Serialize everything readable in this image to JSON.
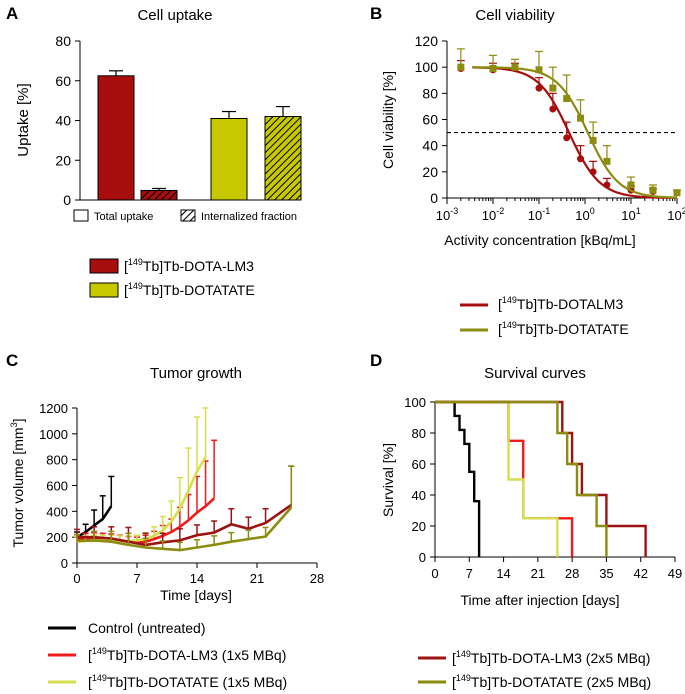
{
  "colors": {
    "lm3": "#a80d0d",
    "lm3_dark": "#5c0000",
    "dotatate": "#c8c800",
    "dotatate_dark": "#6f6f00",
    "control": "#000000",
    "lm3_bright": "#f01c1c",
    "dotatate_bright": "#d6de4e",
    "lm3_2x": "#9b1313",
    "dotatate_2x": "#8c8c10"
  },
  "chart_data": [
    {
      "panel": "A",
      "type": "bar",
      "title": "Cell uptake",
      "ylabel": "Uptake [%]",
      "ylim": [
        0,
        80
      ],
      "yticks": [
        "0",
        "20",
        "40",
        "60",
        "80"
      ],
      "bars": [
        {
          "name": "lm3-total",
          "compound": "lm3",
          "fraction": "total",
          "value": 62.5,
          "err": 2.5
        },
        {
          "name": "lm3-internalized",
          "compound": "lm3",
          "fraction": "internalized",
          "value": 4.8,
          "err": 1.0
        },
        {
          "name": "dotatate-total",
          "compound": "dotatate",
          "fraction": "total",
          "value": 41.0,
          "err": 3.5
        },
        {
          "name": "dotatate-internalized",
          "compound": "dotatate",
          "fraction": "internalized",
          "value": 42.0,
          "err": 5.0
        }
      ],
      "legend_fraction": {
        "total": "Total uptake",
        "internalized": "Internalized fraction"
      },
      "legend_compound": [
        {
          "key": "lm3",
          "sup": "149",
          "label": "Tb]Tb-DOTA-LM3"
        },
        {
          "key": "dotatate",
          "sup": "149",
          "label": "Tb]Tb-DOTATATE"
        }
      ]
    },
    {
      "panel": "B",
      "type": "line",
      "title": "Cell viability",
      "ylabel": "Cell viability [%]",
      "xlabel": "Activity concentration [kBq/mL]",
      "xscale": "log",
      "xlim_exp": [
        -3,
        2
      ],
      "ylim": [
        0,
        120
      ],
      "yticks": [
        "0",
        "20",
        "40",
        "60",
        "80",
        "100",
        "120"
      ],
      "xticks": [
        {
          "base": "10",
          "exp": "-3"
        },
        {
          "base": "10",
          "exp": "-2"
        },
        {
          "base": "10",
          "exp": "-1"
        },
        {
          "base": "10",
          "exp": "0"
        },
        {
          "base": "10",
          "exp": "1"
        },
        {
          "base": "10",
          "exp": "2"
        }
      ],
      "reference_line": 50,
      "series": [
        {
          "name": "lm3",
          "label": "Tb]Tb-DOTALM3",
          "sup": "149",
          "ic50": 0.45,
          "hill": 1.3,
          "x": [
            0.002,
            0.01,
            0.03,
            0.1,
            0.2,
            0.4,
            0.8,
            1.5,
            3,
            10,
            30,
            100
          ],
          "y": [
            99,
            98,
            99,
            84,
            68,
            46,
            30,
            20,
            10,
            6,
            5,
            4
          ],
          "err": [
            6,
            5,
            4,
            8,
            12,
            12,
            10,
            8,
            5,
            3,
            2,
            2
          ]
        },
        {
          "name": "dotatate",
          "label": "Tb]Tb-DOTATATE",
          "sup": "149",
          "ic50": 1.15,
          "hill": 1.3,
          "x": [
            0.002,
            0.01,
            0.03,
            0.1,
            0.2,
            0.4,
            0.8,
            1.5,
            3,
            10,
            30,
            100
          ],
          "y": [
            100,
            99,
            100,
            98,
            84,
            76,
            61,
            44,
            28,
            10,
            6,
            4
          ],
          "err": [
            14,
            10,
            6,
            14,
            16,
            18,
            14,
            14,
            12,
            6,
            4,
            2
          ]
        }
      ]
    },
    {
      "panel": "C",
      "type": "line",
      "title": "Tumor growth",
      "ylabel_main": "Tumor volume [mm",
      "ylabel_sup": "3",
      "ylabel_end": "]",
      "xlabel": "Time [days]",
      "xlim": [
        0,
        28
      ],
      "ylim": [
        0,
        1200
      ],
      "xticks": [
        "0",
        "7",
        "14",
        "21",
        "28"
      ],
      "yticks": [
        "0",
        "200",
        "400",
        "600",
        "800",
        "1000",
        "1200"
      ],
      "series": [
        {
          "name": "control",
          "label": "Control  (untreated)",
          "sup": "",
          "x": [
            0,
            1,
            2,
            3,
            4
          ],
          "y": [
            200,
            240,
            290,
            340,
            440
          ],
          "err": [
            40,
            60,
            120,
            180,
            230
          ]
        },
        {
          "name": "lm3-1x",
          "label": "Tb]Tb-DOTA-LM3 (1x5 MBq)",
          "sup": "149",
          "x": [
            0,
            1,
            2,
            3,
            4,
            5,
            6,
            7,
            8,
            9,
            10,
            11,
            12,
            13,
            14,
            15,
            16
          ],
          "y": [
            180,
            190,
            195,
            190,
            185,
            175,
            165,
            160,
            165,
            185,
            210,
            240,
            280,
            330,
            390,
            440,
            500
          ],
          "err": [
            40,
            40,
            40,
            40,
            40,
            40,
            40,
            40,
            50,
            60,
            80,
            100,
            150,
            200,
            280,
            350,
            450
          ]
        },
        {
          "name": "dotatate-1x",
          "label": "Tb]Tb-DOTATATE (1x5 MBq)",
          "sup": "149",
          "x": [
            0,
            1,
            2,
            3,
            4,
            5,
            6,
            7,
            8,
            9,
            10,
            11,
            12,
            13,
            14,
            15
          ],
          "y": [
            165,
            170,
            175,
            175,
            175,
            170,
            170,
            175,
            185,
            210,
            250,
            320,
            420,
            560,
            710,
            820
          ],
          "err": [
            40,
            40,
            40,
            40,
            40,
            40,
            40,
            40,
            50,
            70,
            110,
            160,
            240,
            330,
            420,
            380
          ]
        },
        {
          "name": "lm3-2x",
          "label": "Tb]Tb-DOTA-LM3 (2x5 MBq)",
          "sup": "149",
          "x": [
            0,
            2,
            4,
            6,
            8,
            10,
            12,
            14,
            16,
            18,
            20,
            22,
            25
          ],
          "y": [
            200,
            200,
            190,
            165,
            140,
            160,
            175,
            215,
            235,
            300,
            265,
            310,
            450
          ],
          "err": [
            60,
            80,
            90,
            110,
            90,
            70,
            90,
            80,
            90,
            120,
            90,
            110,
            300
          ]
        },
        {
          "name": "dotatate-2x",
          "label": "Tb]Tb-DOTATATE (2x5 MBq)",
          "sup": "149",
          "x": [
            0,
            2,
            4,
            6,
            8,
            10,
            12,
            14,
            16,
            18,
            20,
            22,
            25
          ],
          "y": [
            170,
            175,
            165,
            140,
            120,
            110,
            100,
            120,
            140,
            165,
            185,
            205,
            430
          ],
          "err": [
            50,
            70,
            80,
            90,
            70,
            60,
            60,
            60,
            70,
            70,
            70,
            70,
            320
          ]
        }
      ]
    },
    {
      "panel": "D",
      "type": "line",
      "subtype": "step",
      "title": "Survival curves",
      "ylabel": "Survival [%]",
      "xlabel": "Time after injection [days]",
      "xlim": [
        0,
        49
      ],
      "ylim": [
        0,
        100
      ],
      "xticks": [
        "0",
        "7",
        "14",
        "21",
        "28",
        "35",
        "42",
        "49"
      ],
      "yticks": [
        "0",
        "20",
        "40",
        "60",
        "80",
        "100"
      ],
      "series": [
        {
          "name": "control",
          "steps": [
            [
              0,
              100
            ],
            [
              4,
              91
            ],
            [
              5,
              82
            ],
            [
              6,
              73
            ],
            [
              7,
              55
            ],
            [
              8,
              36
            ],
            [
              9,
              0
            ]
          ]
        },
        {
          "name": "lm3-1x",
          "steps": [
            [
              0,
              100
            ],
            [
              15,
              75
            ],
            [
              18,
              25
            ],
            [
              28,
              0
            ]
          ]
        },
        {
          "name": "dotatate-1x",
          "steps": [
            [
              0,
              100
            ],
            [
              15,
              50
            ],
            [
              18,
              25
            ],
            [
              25,
              0
            ]
          ]
        },
        {
          "name": "lm3-2x",
          "steps": [
            [
              0,
              100
            ],
            [
              26,
              80
            ],
            [
              28,
              60
            ],
            [
              30,
              40
            ],
            [
              35,
              20
            ],
            [
              43,
              0
            ]
          ]
        },
        {
          "name": "dotatate-2x",
          "steps": [
            [
              0,
              100
            ],
            [
              25,
              80
            ],
            [
              27,
              60
            ],
            [
              29,
              40
            ],
            [
              33,
              20
            ],
            [
              35,
              0
            ]
          ]
        }
      ]
    }
  ]
}
